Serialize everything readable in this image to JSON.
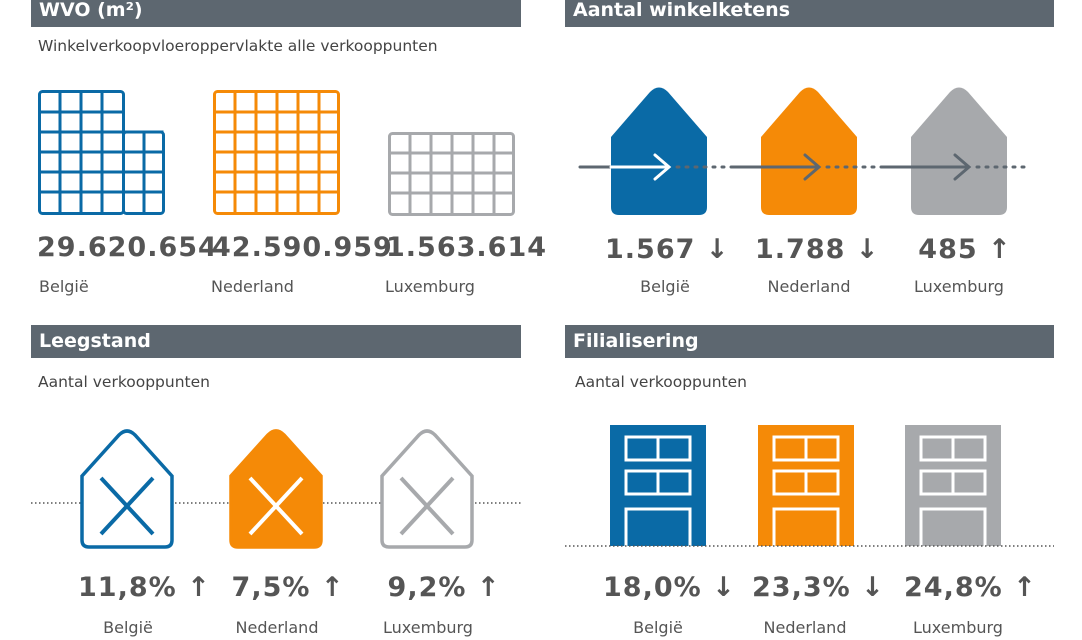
{
  "colors": {
    "belgie": "#0a6aa6",
    "nederland": "#f58a07",
    "luxemburg": "#a7a9ac",
    "header": "#5d6770"
  },
  "wvo": {
    "title": "WVO (m²)",
    "subtitle": "Winkelverkoopvloeroppervlakte alle verkooppunten",
    "items": [
      {
        "value": "29.620.654",
        "label": "België"
      },
      {
        "value": "42.590.959",
        "label": "Nederland"
      },
      {
        "value": "1.563.614",
        "label": "Luxemburg"
      }
    ]
  },
  "ketens": {
    "title": "Aantal winkelketens",
    "items": [
      {
        "value": "1.567 ↓",
        "label": "België"
      },
      {
        "value": "1.788 ↓",
        "label": "Nederland"
      },
      {
        "value": "485 ↑",
        "label": "Luxemburg"
      }
    ]
  },
  "leegstand": {
    "title": "Leegstand",
    "subtitle": "Aantal verkooppunten",
    "items": [
      {
        "value": "11,8% ↑",
        "label": "België"
      },
      {
        "value": "7,5% ↑",
        "label": "Nederland"
      },
      {
        "value": "9,2% ↑",
        "label": "Luxemburg"
      }
    ]
  },
  "filialisering": {
    "title": "Filialisering",
    "subtitle": "Aantal verkooppunten",
    "items": [
      {
        "value": "18,0% ↓",
        "label": "België"
      },
      {
        "value": "23,3% ↓",
        "label": "Nederland"
      },
      {
        "value": "24,8% ↑",
        "label": "Luxemburg"
      }
    ]
  }
}
